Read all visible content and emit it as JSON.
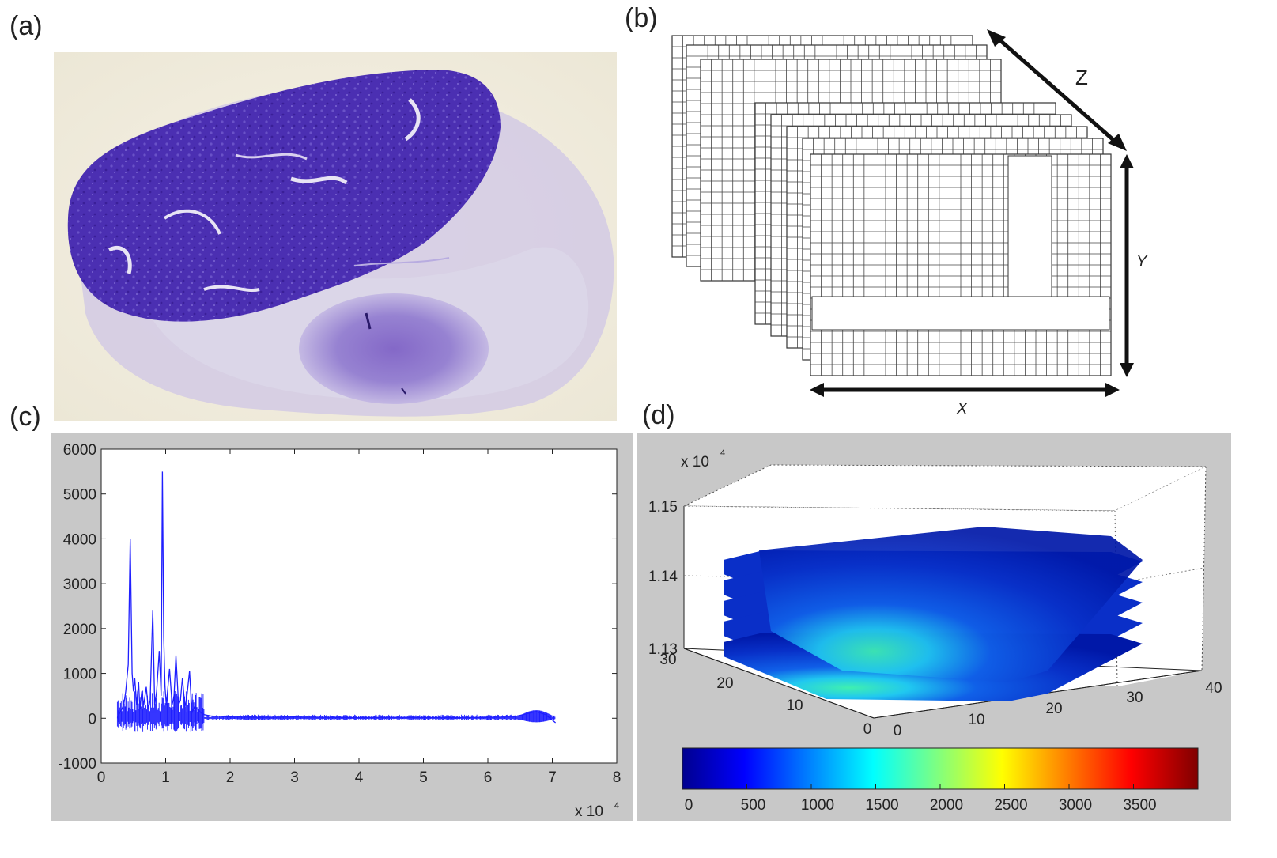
{
  "panels": {
    "a": {
      "label": "(a)"
    },
    "b": {
      "label": "(b)",
      "axis_z": "Z",
      "axis_y": "Y",
      "axis_x": "X"
    },
    "c": {
      "label": "(c)",
      "x_exponent": "x 10",
      "x_exponent_power": "4"
    },
    "d": {
      "label": "(d)",
      "z_exponent": "x 10",
      "z_exponent_power": "4"
    }
  },
  "chart_data": [
    {
      "panel": "c",
      "type": "line",
      "xlim": [
        0,
        8
      ],
      "ylim": [
        -1000,
        6000
      ],
      "x_ticks": [
        "0",
        "1",
        "2",
        "3",
        "4",
        "5",
        "6",
        "7",
        "8"
      ],
      "y_ticks": [
        "-1000",
        "0",
        "1000",
        "2000",
        "3000",
        "4000",
        "5000",
        "6000"
      ],
      "x_multiplier": "x 10^4",
      "series": [
        {
          "color": "#1f1fff",
          "x": [
            0.25,
            0.3,
            0.35,
            0.38,
            0.42,
            0.45,
            0.48,
            0.5,
            0.52,
            0.55,
            0.58,
            0.6,
            0.63,
            0.66,
            0.7,
            0.73,
            0.76,
            0.8,
            0.83,
            0.86,
            0.9,
            0.93,
            0.95,
            0.97,
            0.99,
            1.01,
            1.03,
            1.06,
            1.1,
            1.13,
            1.16,
            1.2,
            1.23,
            1.26,
            1.3,
            1.33,
            1.37,
            1.4,
            1.42,
            1.45,
            1.5,
            1.55,
            1.6,
            1.7,
            1.8,
            2.0,
            2.5,
            3.0,
            3.5,
            4.0,
            4.5,
            5.0,
            5.5,
            6.0,
            6.4,
            6.6,
            6.75,
            6.9,
            7.05
          ],
          "y": [
            0,
            150,
            300,
            600,
            1200,
            4000,
            1000,
            600,
            900,
            300,
            800,
            200,
            600,
            300,
            700,
            200,
            400,
            2400,
            300,
            600,
            1500,
            500,
            5500,
            1800,
            700,
            300,
            600,
            1100,
            300,
            500,
            1400,
            300,
            400,
            900,
            250,
            500,
            1050,
            300,
            150,
            250,
            200,
            120,
            80,
            50,
            40,
            30,
            20,
            30,
            20,
            10,
            20,
            15,
            10,
            20,
            30,
            100,
            150,
            80,
            -100
          ]
        }
      ]
    },
    {
      "panel": "d",
      "type": "heatmap",
      "x_ticks": [
        "0",
        "10",
        "20",
        "30",
        "40"
      ],
      "y_ticks": [
        "0",
        "10",
        "20",
        "30"
      ],
      "z_ticks": [
        "1.13",
        "1.14",
        "1.15"
      ],
      "z_multiplier": "x 10^4",
      "slices": 5,
      "colorbar_ticks": [
        "0",
        "500",
        "1000",
        "1500",
        "2000",
        "2500",
        "3000",
        "3500"
      ],
      "colorbar_range": [
        0,
        4000
      ],
      "colormap": [
        "#00008f",
        "#0000ff",
        "#00ffff",
        "#ffff00",
        "#ff0000",
        "#800000"
      ]
    }
  ]
}
